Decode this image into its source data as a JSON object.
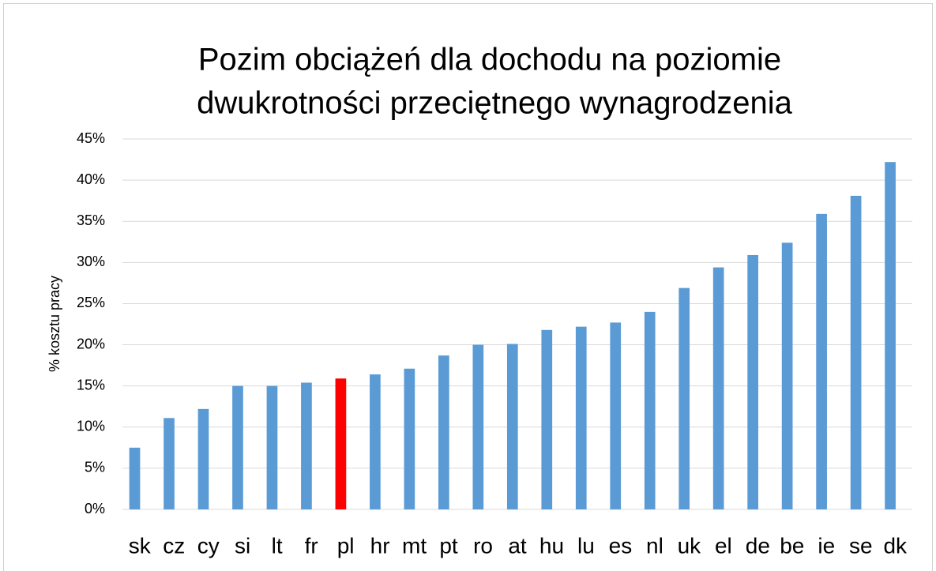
{
  "chart_data": {
    "type": "bar",
    "title": [
      "Pozim obciążeń dla dochodu na poziomie",
      "dwukrotności przeciętnego wynagrodzenia"
    ],
    "y_label": "% kosztu pracy",
    "categories": [
      "sk",
      "cz",
      "cy",
      "si",
      "lt",
      "fr",
      "pl",
      "hr",
      "mt",
      "pt",
      "ro",
      "at",
      "hu",
      "lu",
      "es",
      "nl",
      "uk",
      "el",
      "de",
      "be",
      "ie",
      "se",
      "dk"
    ],
    "values": [
      7.5,
      11.1,
      12.2,
      15,
      15,
      15.4,
      15.9,
      16.4,
      17.1,
      18.7,
      20,
      20.1,
      21.8,
      22.2,
      22.7,
      24,
      26.9,
      29.4,
      30.9,
      32.4,
      35.9,
      38.1,
      42.2
    ],
    "colors": [
      "#5b9bd5",
      "#5b9bd5",
      "#5b9bd5",
      "#5b9bd5",
      "#5b9bd5",
      "#5b9bd5",
      "#ff0000",
      "#5b9bd5",
      "#5b9bd5",
      "#5b9bd5",
      "#5b9bd5",
      "#5b9bd5",
      "#5b9bd5",
      "#5b9bd5",
      "#5b9bd5",
      "#5b9bd5",
      "#5b9bd5",
      "#5b9bd5",
      "#5b9bd5",
      "#5b9bd5",
      "#5b9bd5",
      "#5b9bd5",
      "#5b9bd5"
    ],
    "ylim": [
      0,
      45
    ],
    "yticks": [
      {
        "value": 0,
        "label": "0%"
      },
      {
        "value": 5,
        "label": "5%"
      },
      {
        "value": 10,
        "label": "10%"
      },
      {
        "value": 15,
        "label": "15%"
      },
      {
        "value": 20,
        "label": "20%"
      },
      {
        "value": 25,
        "label": "25%"
      },
      {
        "value": 30,
        "label": "30%"
      },
      {
        "value": 35,
        "label": "35%"
      },
      {
        "value": 40,
        "label": "40%"
      },
      {
        "value": 45,
        "label": "45%"
      }
    ],
    "grid": true
  }
}
